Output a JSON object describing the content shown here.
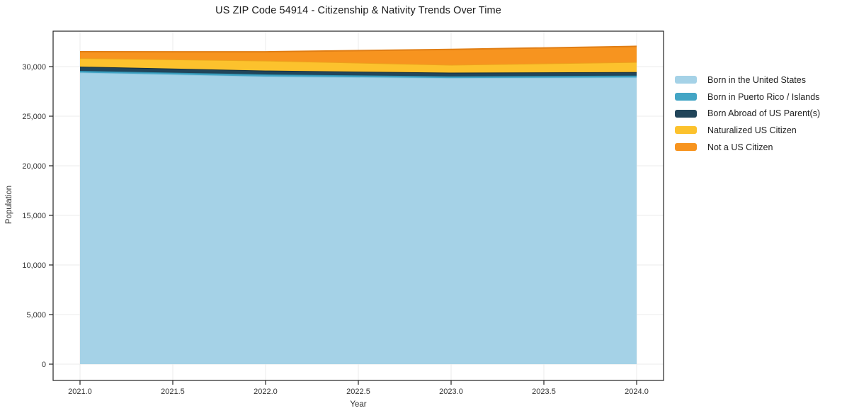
{
  "figure": {
    "title": "US ZIP Code 54914 - Citizenship & Nativity Trends Over Time"
  },
  "chart_data": {
    "type": "area",
    "stacked": true,
    "title": "US ZIP Code 54914 - Citizenship & Nativity Trends Over Time",
    "xlabel": "Year",
    "ylabel": "Population",
    "grid": true,
    "grid_color": "#ebebeb",
    "axis_color": "#222222",
    "legend_position": "right",
    "x": [
      2021,
      2022,
      2023,
      2024
    ],
    "series": [
      {
        "name": "Born in the United States",
        "color": "#a5d2e7",
        "line_color": "#92c8e0",
        "values": [
          29400,
          29000,
          28850,
          28900
        ]
      },
      {
        "name": "Born in Puerto Rico / Islands",
        "color": "#43a5c5",
        "line_color": "#2f90af",
        "values": [
          170,
          210,
          170,
          190
        ]
      },
      {
        "name": "Born Abroad of US Parent(s)",
        "color": "#21455a",
        "line_color": "#16303f",
        "values": [
          430,
          390,
          370,
          360
        ]
      },
      {
        "name": "Naturalized US Citizen",
        "color": "#fcc22d",
        "line_color": "#eda21c",
        "values": [
          850,
          1000,
          790,
          1010
        ]
      },
      {
        "name": "Not a US Citizen",
        "color": "#f7941f",
        "line_color": "#e07e15",
        "values": [
          650,
          890,
          1550,
          1580
        ]
      }
    ],
    "x_ticks": [
      "2021.0",
      "2021.5",
      "2022.0",
      "2022.5",
      "2023.0",
      "2023.5",
      "2024.0"
    ],
    "x_tick_values": [
      2021,
      2021.5,
      2022,
      2022.5,
      2023,
      2023.5,
      2024
    ],
    "y_ticks": [
      "0",
      "5,000",
      "10,000",
      "15,000",
      "20,000",
      "25,000",
      "30,000"
    ],
    "y_tick_values": [
      0,
      5000,
      10000,
      15000,
      20000,
      25000,
      30000
    ],
    "xlim": [
      2020.855,
      2024.145
    ],
    "ylim": [
      -1643,
      33571
    ]
  }
}
